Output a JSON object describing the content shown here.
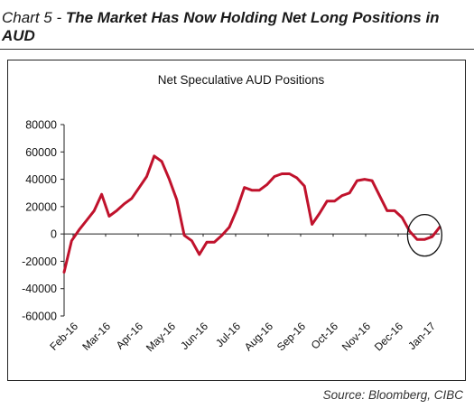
{
  "header": {
    "label": "Chart 5 - ",
    "title": "The Market Has Now Holding Net Long Positions in AUD"
  },
  "source": "Source: Bloomberg, CIBC",
  "chart_data": {
    "type": "line",
    "title": "Net Speculative AUD Positions",
    "xlabel": "",
    "ylabel": "",
    "ylim": [
      -60000,
      80000
    ],
    "y_ticks": [
      80000,
      60000,
      40000,
      20000,
      0,
      -20000,
      -40000,
      -60000
    ],
    "y_tick_labels": [
      "80000",
      "60000",
      "40000",
      "20000",
      "0",
      "-20000",
      "-40000",
      "-60000"
    ],
    "x_tick_labels": [
      "Feb-16",
      "Mar-16",
      "Apr-16",
      "May-16",
      "Jun-16",
      "Jul-16",
      "Aug-16",
      "Sep-16",
      "Oct-16",
      "Nov-16",
      "Dec-16",
      "Jan-17"
    ],
    "grid": false,
    "legend": "none",
    "line_color": "#c0122c",
    "annotation": "circle around latest values",
    "series": [
      {
        "values": [
          -28000,
          -5000,
          3000,
          10000,
          17000,
          29000,
          13000,
          17000,
          22000,
          26000,
          34000,
          42000,
          57000,
          53000,
          40000,
          25000,
          -1000,
          -5000,
          -15000,
          -6000,
          -6000,
          -1000,
          5000,
          18000,
          34000,
          32000,
          32000,
          36000,
          42000,
          44000,
          44000,
          41000,
          35000,
          7000,
          15000,
          24000,
          24000,
          28000,
          30000,
          39000,
          40000,
          39000,
          28000,
          17000,
          17000,
          12000,
          2000,
          -4000,
          -4000,
          -2000,
          5000
        ]
      }
    ]
  }
}
